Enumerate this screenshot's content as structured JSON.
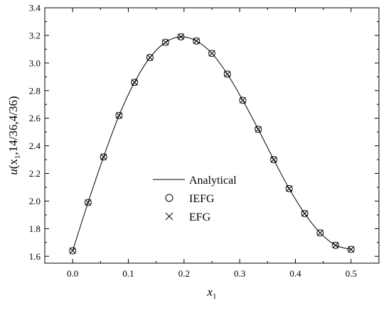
{
  "chart_data": {
    "type": "line",
    "title": "",
    "xlabel": {
      "base": "x",
      "sub": "1"
    },
    "ylabel": {
      "base": "u",
      "open": "(x",
      "sub": "1",
      "rest": ",14/36,4/36)"
    },
    "xlim": [
      -0.05,
      0.55
    ],
    "ylim": [
      1.55,
      3.4
    ],
    "x_ticks": [
      0.0,
      0.1,
      0.2,
      0.3,
      0.4,
      0.5
    ],
    "x_tick_labels": [
      "0.0",
      "0.1",
      "0.2",
      "0.3",
      "0.4",
      "0.5"
    ],
    "y_ticks": [
      1.6,
      1.8,
      2.0,
      2.2,
      2.4,
      2.6,
      2.8,
      3.0,
      3.2,
      3.4
    ],
    "y_tick_labels": [
      "1.6",
      "1.8",
      "2.0",
      "2.2",
      "2.4",
      "2.6",
      "2.8",
      "3.0",
      "3.2",
      "3.4"
    ],
    "grid": false,
    "legend_position": "center",
    "series": [
      {
        "name": "Analytical",
        "style": "line",
        "x": [
          0.0,
          0.02778,
          0.05556,
          0.08333,
          0.11111,
          0.13889,
          0.16667,
          0.19444,
          0.22222,
          0.25,
          0.27778,
          0.30556,
          0.33333,
          0.36111,
          0.38889,
          0.41667,
          0.44444,
          0.47222,
          0.5
        ],
        "y": [
          1.64,
          1.99,
          2.32,
          2.62,
          2.86,
          3.04,
          3.15,
          3.19,
          3.16,
          3.07,
          2.92,
          2.73,
          2.52,
          2.3,
          2.09,
          1.91,
          1.77,
          1.68,
          1.65
        ]
      },
      {
        "name": "IEFG",
        "style": "circle-marker",
        "x": [
          0.0,
          0.02778,
          0.05556,
          0.08333,
          0.11111,
          0.13889,
          0.16667,
          0.19444,
          0.22222,
          0.25,
          0.27778,
          0.30556,
          0.33333,
          0.36111,
          0.38889,
          0.41667,
          0.44444,
          0.47222,
          0.5
        ],
        "y": [
          1.64,
          1.99,
          2.32,
          2.62,
          2.86,
          3.04,
          3.15,
          3.19,
          3.16,
          3.07,
          2.92,
          2.73,
          2.52,
          2.3,
          2.09,
          1.91,
          1.77,
          1.68,
          1.65
        ]
      },
      {
        "name": "EFG",
        "style": "cross-marker",
        "x": [
          0.0,
          0.02778,
          0.05556,
          0.08333,
          0.11111,
          0.13889,
          0.16667,
          0.19444,
          0.22222,
          0.25,
          0.27778,
          0.30556,
          0.33333,
          0.36111,
          0.38889,
          0.41667,
          0.44444,
          0.47222,
          0.5
        ],
        "y": [
          1.64,
          1.99,
          2.32,
          2.62,
          2.86,
          3.04,
          3.15,
          3.19,
          3.16,
          3.07,
          2.92,
          2.73,
          2.52,
          2.3,
          2.09,
          1.91,
          1.77,
          1.68,
          1.65
        ]
      }
    ],
    "colors": {
      "line": "#000000",
      "marker": "#000000",
      "background": "#ffffff"
    }
  }
}
